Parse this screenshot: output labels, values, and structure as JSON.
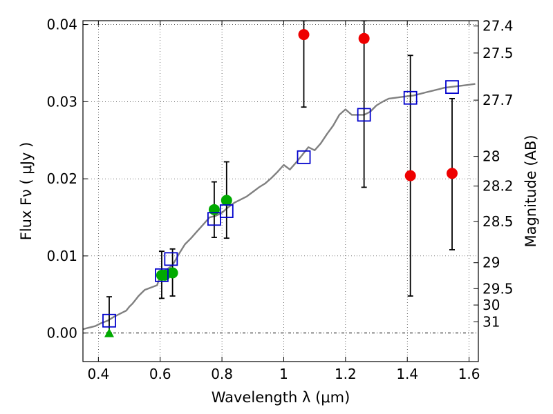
{
  "chart_data": {
    "type": "scatter",
    "xlabel": "Wavelength  λ (μm)",
    "ylabel": "Flux  Fν ( μJy )",
    "ylabel_right": "Magnitude (AB)",
    "xlim": [
      0.35,
      1.63
    ],
    "ylim": [
      -0.0037,
      0.0405
    ],
    "grid": true,
    "x_ticks": [
      0.4,
      0.6,
      0.8,
      1.0,
      1.2,
      1.4,
      1.6
    ],
    "x_tick_labels": [
      "0.4",
      "0.6",
      "0.8",
      "1",
      "1.2",
      "1.4",
      "1.6"
    ],
    "y_ticks": [
      0.0,
      0.01,
      0.02,
      0.03,
      0.04
    ],
    "y_tick_labels": [
      "0.00",
      "0.01",
      "0.02",
      "0.03",
      "0.04"
    ],
    "right_ticks": [
      {
        "mag": 27.4,
        "label": "27.4"
      },
      {
        "mag": 27.5,
        "label": "27.5"
      },
      {
        "mag": 27.7,
        "label": "27.7"
      },
      {
        "mag": 28,
        "label": "28"
      },
      {
        "mag": 28.2,
        "label": "28.2"
      },
      {
        "mag": 28.5,
        "label": "28.5"
      },
      {
        "mag": 29,
        "label": "29"
      },
      {
        "mag": 29.5,
        "label": "29.5"
      },
      {
        "mag": 30,
        "label": "30"
      },
      {
        "mag": 31,
        "label": "31"
      }
    ],
    "colors": {
      "model": "#808080",
      "model_points": "#0000cc",
      "hst_detections": "#00aa00",
      "ir_detections": "#ee0000",
      "errorbar": "#000000"
    },
    "series": [
      {
        "kind": "line",
        "color": "#808080",
        "x": [
          0.35,
          0.37,
          0.39,
          0.41,
          0.43,
          0.45,
          0.47,
          0.49,
          0.5,
          0.51,
          0.52,
          0.53,
          0.54,
          0.55,
          0.57,
          0.59,
          0.6,
          0.62,
          0.64,
          0.66,
          0.68,
          0.7,
          0.72,
          0.74,
          0.76,
          0.78,
          0.8,
          0.82,
          0.84,
          0.86,
          0.88,
          0.9,
          0.92,
          0.94,
          0.96,
          0.98,
          1.0,
          1.02,
          1.04,
          1.06,
          1.08,
          1.1,
          1.12,
          1.14,
          1.16,
          1.18,
          1.2,
          1.22,
          1.24,
          1.26,
          1.28,
          1.3,
          1.32,
          1.34,
          1.36,
          1.38,
          1.4,
          1.42,
          1.44,
          1.46,
          1.48,
          1.5,
          1.52,
          1.54,
          1.56,
          1.58,
          1.6,
          1.62
        ],
        "y": [
          0.0005,
          0.0007,
          0.0009,
          0.0013,
          0.0016,
          0.0021,
          0.0025,
          0.0029,
          0.0034,
          0.0038,
          0.0043,
          0.0048,
          0.0052,
          0.0056,
          0.0059,
          0.0062,
          0.0074,
          0.0082,
          0.0088,
          0.0102,
          0.0115,
          0.0123,
          0.0132,
          0.0141,
          0.015,
          0.0152,
          0.0156,
          0.0163,
          0.0169,
          0.0173,
          0.0177,
          0.0183,
          0.0189,
          0.0194,
          0.0201,
          0.0209,
          0.0218,
          0.0212,
          0.0221,
          0.0231,
          0.0241,
          0.0237,
          0.0246,
          0.0258,
          0.0269,
          0.0283,
          0.029,
          0.0283,
          0.0283,
          0.0283,
          0.0287,
          0.0295,
          0.03,
          0.0304,
          0.0305,
          0.0306,
          0.0307,
          0.0308,
          0.031,
          0.0312,
          0.0314,
          0.0316,
          0.0318,
          0.0319,
          0.032,
          0.0321,
          0.0322,
          0.0323
        ]
      },
      {
        "kind": "markers",
        "marker": "open-square",
        "color": "#0000cc",
        "x": [
          0.435,
          0.605,
          0.635,
          0.775,
          0.815,
          1.065,
          1.26,
          1.41,
          1.545
        ],
        "y": [
          0.0016,
          0.0075,
          0.0096,
          0.0148,
          0.0158,
          0.0228,
          0.0283,
          0.0305,
          0.0319
        ]
      },
      {
        "kind": "markers",
        "marker": "filled-circle",
        "color": "#00aa00",
        "x": [
          0.605,
          0.615,
          0.64,
          0.775,
          0.815
        ],
        "y": [
          0.0075,
          0.0075,
          0.0078,
          0.016,
          0.0172
        ]
      },
      {
        "kind": "markers",
        "marker": "filled-triangle",
        "color": "#00aa00",
        "x": [
          0.435
        ],
        "y": [
          0.0
        ]
      },
      {
        "kind": "markers",
        "marker": "filled-circle",
        "color": "#ee0000",
        "x": [
          1.065,
          1.26,
          1.41,
          1.545
        ],
        "y": [
          0.0387,
          0.0382,
          0.0204,
          0.0207
        ]
      }
    ],
    "errorbars": [
      {
        "x": 0.435,
        "low": 0.0,
        "high": 0.0047
      },
      {
        "x": 0.605,
        "low": 0.0045,
        "high": 0.0106
      },
      {
        "x": 0.64,
        "low": 0.0048,
        "high": 0.0109
      },
      {
        "x": 0.775,
        "low": 0.0124,
        "high": 0.0196
      },
      {
        "x": 0.815,
        "low": 0.0123,
        "high": 0.0222
      },
      {
        "x": 1.065,
        "low": 0.0293,
        "high": 0.0405
      },
      {
        "x": 1.26,
        "low": 0.0189,
        "high": 0.0405
      },
      {
        "x": 1.41,
        "low": 0.0048,
        "high": 0.036
      },
      {
        "x": 1.545,
        "low": 0.0108,
        "high": 0.0304
      }
    ]
  }
}
